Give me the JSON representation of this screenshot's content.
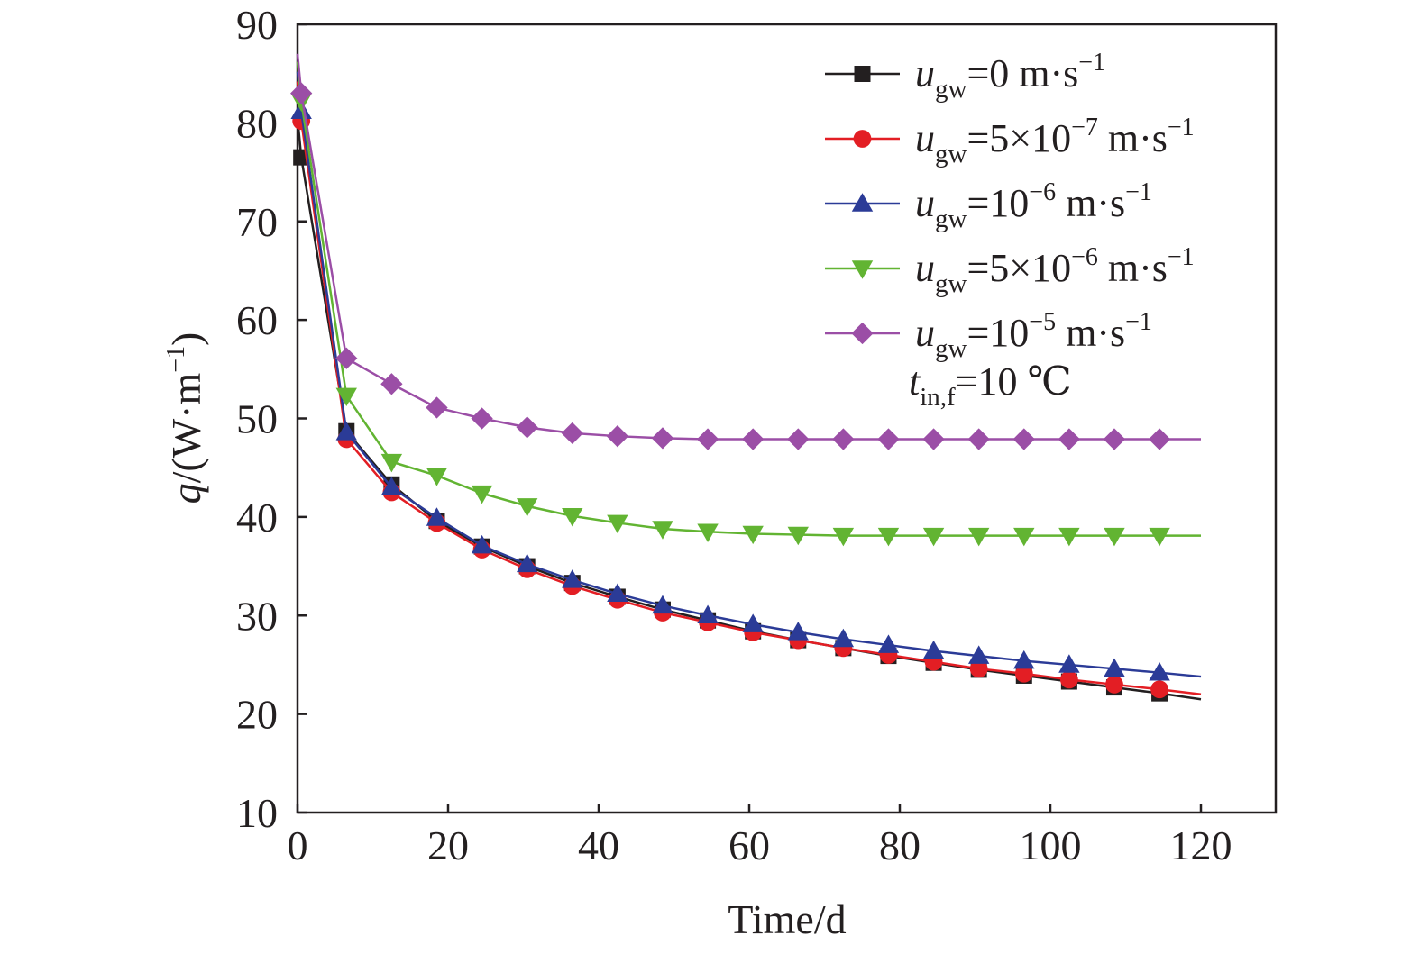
{
  "chart_data": {
    "type": "line",
    "xlabel": "Time/d",
    "ylabel_parts": {
      "var": "q",
      "unit_open": "/(W·m",
      "unit_sup": "−1",
      "unit_close": ")"
    },
    "xlim": [
      0,
      130
    ],
    "ylim": [
      10,
      90
    ],
    "xticks": [
      0,
      20,
      40,
      60,
      80,
      100,
      120
    ],
    "yticks": [
      10,
      20,
      30,
      40,
      50,
      60,
      70,
      80,
      90
    ],
    "grid": false,
    "legend_position": "top-right",
    "annotation": {
      "var": "t",
      "sub": "in,f",
      "rest": "=10 ℃"
    },
    "series": [
      {
        "label": {
          "var": "u",
          "sub": "gw",
          "main": "=0 m·s",
          "sup": "−1"
        },
        "color": "#231f20",
        "marker": "square",
        "x": [
          0.5,
          6.5,
          12.5,
          18.5,
          24.5,
          30.5,
          36.5,
          42.5,
          48.5,
          54.5,
          60.5,
          66.5,
          72.5,
          78.5,
          84.5,
          90.5,
          96.5,
          102.5,
          108.5,
          114.5,
          120
        ],
        "y": [
          76.5,
          48.7,
          43.3,
          39.6,
          37.0,
          35.0,
          33.3,
          31.9,
          30.6,
          29.5,
          28.4,
          27.5,
          26.7,
          25.9,
          25.2,
          24.5,
          23.9,
          23.3,
          22.7,
          22.1,
          21.5
        ]
      },
      {
        "label": {
          "var": "u",
          "sub": "gw",
          "main": "=5×10",
          "exp": "−7",
          "main2": " m·s",
          "sup": "−1"
        },
        "color": "#e31e24",
        "marker": "circle",
        "x": [
          0.5,
          6.5,
          12.5,
          18.5,
          24.5,
          30.5,
          36.5,
          42.5,
          48.5,
          54.5,
          60.5,
          66.5,
          72.5,
          78.5,
          84.5,
          90.5,
          96.5,
          102.5,
          108.5,
          114.5,
          120
        ],
        "y": [
          80.2,
          47.9,
          42.5,
          39.4,
          36.7,
          34.7,
          33.0,
          31.6,
          30.3,
          29.3,
          28.3,
          27.5,
          26.7,
          26.0,
          25.3,
          24.6,
          24.1,
          23.5,
          23.0,
          22.5,
          22.0
        ]
      },
      {
        "label": {
          "var": "u",
          "sub": "gw",
          "main": "=10",
          "exp": "−6",
          "main2": " m·s",
          "sup": "−1"
        },
        "color": "#2b3b97",
        "marker": "triangle-up",
        "x": [
          0.5,
          6.5,
          12.5,
          18.5,
          24.5,
          30.5,
          36.5,
          42.5,
          48.5,
          54.5,
          60.5,
          66.5,
          72.5,
          78.5,
          84.5,
          90.5,
          96.5,
          102.5,
          108.5,
          114.5,
          120
        ],
        "y": [
          81.2,
          48.6,
          43.0,
          39.9,
          37.1,
          35.2,
          33.6,
          32.2,
          31.0,
          30.0,
          29.1,
          28.3,
          27.6,
          27.0,
          26.4,
          25.9,
          25.4,
          25.0,
          24.6,
          24.2,
          23.8
        ]
      },
      {
        "label": {
          "var": "u",
          "sub": "gw",
          "main": "=5×10",
          "exp": "−6",
          "main2": " m·s",
          "sup": "−1"
        },
        "color": "#62b432",
        "marker": "triangle-down",
        "x": [
          0.5,
          6.5,
          12.5,
          18.5,
          24.5,
          30.5,
          36.5,
          42.5,
          48.5,
          54.5,
          60.5,
          66.5,
          72.5,
          78.5,
          84.5,
          90.5,
          96.5,
          102.5,
          108.5,
          114.5,
          120
        ],
        "y": [
          82.2,
          52.3,
          45.6,
          44.2,
          42.4,
          41.1,
          40.1,
          39.4,
          38.8,
          38.5,
          38.3,
          38.2,
          38.1,
          38.1,
          38.1,
          38.1,
          38.1,
          38.1,
          38.1,
          38.1,
          38.1
        ]
      },
      {
        "label": {
          "var": "u",
          "sub": "gw",
          "main": "=10",
          "exp": "−5",
          "main2": " m·s",
          "sup": "−1"
        },
        "color": "#9b4ea6",
        "marker": "diamond",
        "x": [
          0.5,
          6.5,
          12.5,
          18.5,
          24.5,
          30.5,
          36.5,
          42.5,
          48.5,
          54.5,
          60.5,
          66.5,
          72.5,
          78.5,
          84.5,
          90.5,
          96.5,
          102.5,
          108.5,
          114.5,
          120
        ],
        "y": [
          83.0,
          56.1,
          53.5,
          51.1,
          50.0,
          49.1,
          48.5,
          48.2,
          48.0,
          47.9,
          47.9,
          47.9,
          47.9,
          47.9,
          47.9,
          47.9,
          47.9,
          47.9,
          47.9,
          47.9,
          47.9
        ]
      }
    ]
  }
}
